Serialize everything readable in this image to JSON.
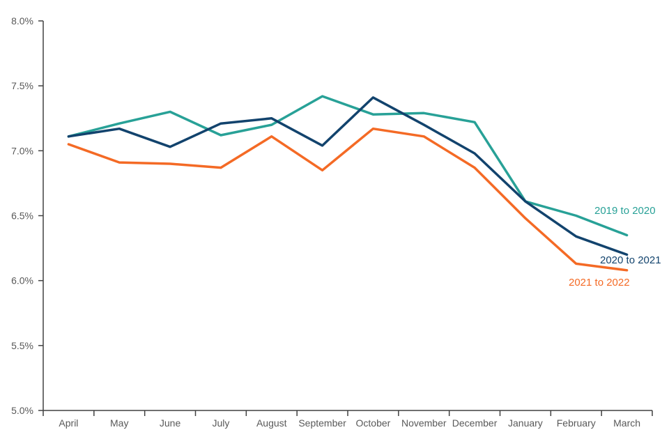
{
  "chart_data": {
    "type": "line",
    "title": "",
    "xlabel": "",
    "ylabel": "",
    "grid": false,
    "legend_position": "line-end-labels",
    "x_categories": [
      "April",
      "May",
      "June",
      "July",
      "August",
      "September",
      "October",
      "November",
      "December",
      "January",
      "February",
      "March"
    ],
    "y_axis": {
      "min": 5.0,
      "max": 8.0,
      "tick_step": 0.5,
      "tick_values": [
        8.0,
        7.5,
        7.0,
        6.5,
        6.0,
        5.5,
        5.0
      ],
      "tick_labels": [
        "8.0%",
        "7.5%",
        "7.0%",
        "6.5%",
        "6.0%",
        "5.5%",
        "5.0%"
      ]
    },
    "series": [
      {
        "name": "2019 to 2020",
        "label": "2019 to 2020",
        "color": "#28A197",
        "values": [
          7.11,
          7.21,
          7.3,
          7.12,
          7.2,
          7.42,
          7.28,
          7.29,
          7.22,
          6.61,
          6.5,
          6.35
        ]
      },
      {
        "name": "2020 to 2021",
        "label": "2020 to 2021",
        "color": "#12436D",
        "values": [
          7.11,
          7.17,
          7.03,
          7.21,
          7.25,
          7.04,
          7.41,
          7.2,
          6.98,
          6.61,
          6.34,
          6.2
        ]
      },
      {
        "name": "2021 to 2022",
        "label": "2021 to 2022",
        "color": "#F46A25",
        "values": [
          7.05,
          6.91,
          6.9,
          6.87,
          7.11,
          6.85,
          7.17,
          7.11,
          6.87,
          6.48,
          6.13,
          6.08
        ]
      }
    ],
    "colors": {
      "axis": "#404040",
      "tick_label": "#595959"
    }
  }
}
